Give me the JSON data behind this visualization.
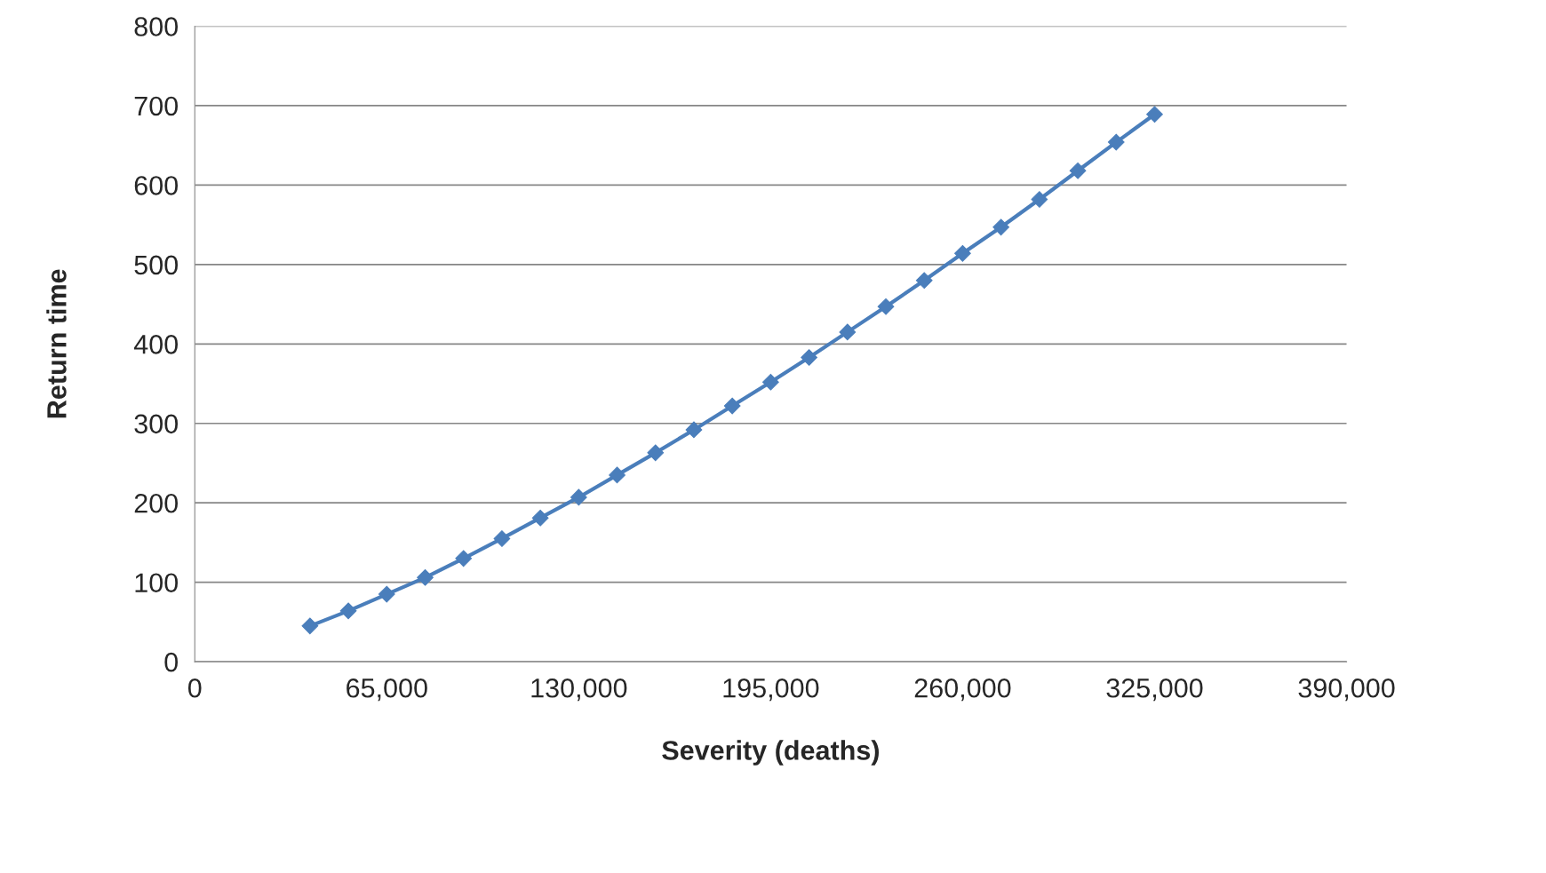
{
  "chart_data": {
    "type": "line",
    "xlabel": "Severity (deaths)",
    "ylabel": "Return time",
    "x": [
      39000,
      52000,
      65000,
      78000,
      91000,
      104000,
      117000,
      130000,
      143000,
      156000,
      169000,
      182000,
      195000,
      208000,
      221000,
      234000,
      247000,
      260000,
      273000,
      286000,
      299000,
      312000,
      325000
    ],
    "series": [
      {
        "color": "#4a7ebb",
        "values": [
          45,
          64,
          85,
          106,
          130,
          155,
          181,
          207,
          235,
          263,
          292,
          322,
          352,
          383,
          415,
          447,
          480,
          514,
          547,
          582,
          618,
          654,
          689
        ]
      }
    ],
    "xlim": [
      0,
      390000
    ],
    "xticks": [
      {
        "value": 0,
        "label": "0"
      },
      {
        "value": 65000,
        "label": "65,000"
      },
      {
        "value": 130000,
        "label": "130,000"
      },
      {
        "value": 195000,
        "label": "195,000"
      },
      {
        "value": 260000,
        "label": "260,000"
      },
      {
        "value": 325000,
        "label": "325,000"
      },
      {
        "value": 390000,
        "label": "390,000"
      }
    ],
    "ylim": [
      0,
      800
    ],
    "yticks": [
      0,
      100,
      200,
      300,
      400,
      500,
      600,
      700,
      800
    ],
    "grid": "y",
    "marker": "diamond",
    "line_style": "solid"
  }
}
